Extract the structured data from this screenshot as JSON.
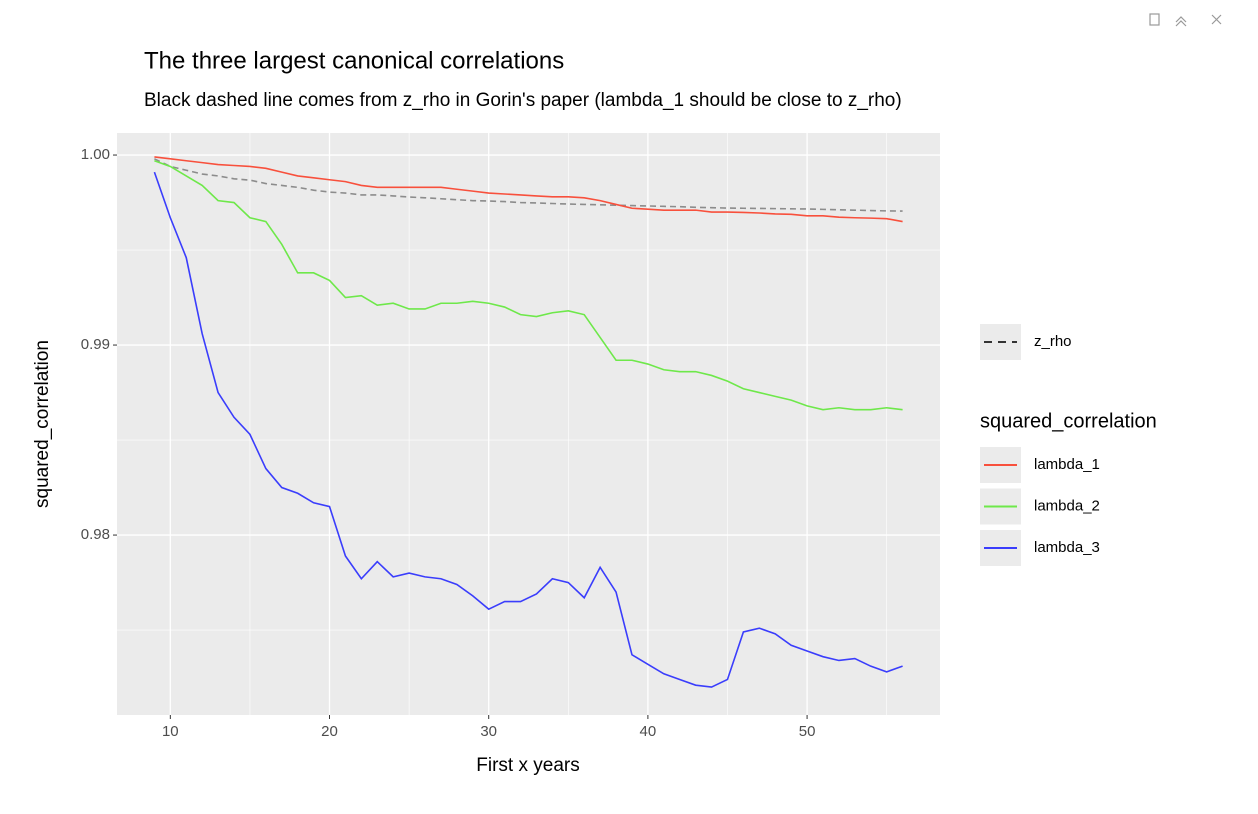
{
  "chart_data": {
    "type": "line",
    "title": "The three largest canonical correlations",
    "subtitle": "Black dashed line comes from z_rho in Gorin's paper (lambda_1 should be close to z_rho)",
    "x_label": "First x years",
    "y_label": "squared_correlation",
    "legend_title": "squared_correlation",
    "x": [
      9,
      10,
      11,
      12,
      13,
      14,
      15,
      16,
      17,
      18,
      19,
      20,
      21,
      22,
      23,
      24,
      25,
      26,
      27,
      28,
      29,
      30,
      31,
      32,
      33,
      34,
      35,
      36,
      37,
      38,
      39,
      40,
      41,
      42,
      43,
      44,
      45,
      46,
      47,
      48,
      49,
      50,
      51,
      52,
      53,
      54,
      55,
      56
    ],
    "series": [
      {
        "name": "z_rho",
        "color": "#8c8c8c",
        "dashed": true,
        "values": [
          0.9998,
          0.9994,
          0.9992,
          0.999,
          0.9989,
          0.99875,
          0.99868,
          0.9985,
          0.9984,
          0.9983,
          0.99815,
          0.99805,
          0.998,
          0.9979,
          0.9979,
          0.99785,
          0.99779,
          0.99775,
          0.9977,
          0.99765,
          0.9976,
          0.99758,
          0.99755,
          0.9975,
          0.99748,
          0.99745,
          0.99742,
          0.9974,
          0.99738,
          0.99736,
          0.99734,
          0.99732,
          0.9973,
          0.99728,
          0.99725,
          0.99723,
          0.99721,
          0.9972,
          0.99719,
          0.99718,
          0.99717,
          0.99716,
          0.99714,
          0.99712,
          0.9971,
          0.99708,
          0.99706,
          0.99705
        ]
      },
      {
        "name": "lambda_1",
        "color": "#f8503c",
        "values": [
          0.9999,
          0.9998,
          0.9997,
          0.9996,
          0.9995,
          0.99945,
          0.9994,
          0.9993,
          0.9991,
          0.9989,
          0.9988,
          0.9987,
          0.9986,
          0.9984,
          0.9983,
          0.9983,
          0.9983,
          0.9983,
          0.9983,
          0.9982,
          0.9981,
          0.998,
          0.99795,
          0.9979,
          0.99785,
          0.9978,
          0.9978,
          0.99775,
          0.9976,
          0.9974,
          0.9972,
          0.99715,
          0.9971,
          0.9971,
          0.9971,
          0.997,
          0.997,
          0.99698,
          0.99695,
          0.9969,
          0.99688,
          0.9968,
          0.9968,
          0.99673,
          0.9967,
          0.99668,
          0.99665,
          0.9965
        ]
      },
      {
        "name": "lambda_2",
        "color": "#6ee84a",
        "values": [
          0.9997,
          0.9994,
          0.9989,
          0.9984,
          0.9976,
          0.9975,
          0.9967,
          0.9965,
          0.9953,
          0.9938,
          0.9938,
          0.9934,
          0.9925,
          0.9926,
          0.9921,
          0.9922,
          0.9919,
          0.9919,
          0.9922,
          0.9922,
          0.9923,
          0.9922,
          0.992,
          0.9916,
          0.9915,
          0.9917,
          0.9918,
          0.9916,
          0.9904,
          0.9892,
          0.9892,
          0.989,
          0.9887,
          0.9886,
          0.9886,
          0.9884,
          0.9881,
          0.9877,
          0.9875,
          0.9873,
          0.9871,
          0.9868,
          0.9866,
          0.9867,
          0.9866,
          0.9866,
          0.9867,
          0.9866
        ]
      },
      {
        "name": "lambda_3",
        "color": "#3a3dfc",
        "values": [
          0.9991,
          0.9967,
          0.9946,
          0.9906,
          0.9875,
          0.9862,
          0.9853,
          0.9835,
          0.9825,
          0.9822,
          0.9817,
          0.9815,
          0.9789,
          0.9777,
          0.9786,
          0.9778,
          0.978,
          0.9778,
          0.9777,
          0.9774,
          0.9768,
          0.9761,
          0.9765,
          0.9765,
          0.9769,
          0.9777,
          0.9775,
          0.9767,
          0.9783,
          0.977,
          0.9737,
          0.9732,
          0.9727,
          0.9724,
          0.9721,
          0.972,
          0.9724,
          0.9749,
          0.9751,
          0.9748,
          0.9742,
          0.9739,
          0.9736,
          0.9734,
          0.9735,
          0.9731,
          0.9728,
          0.9731
        ]
      }
    ],
    "xlim": [
      6.65,
      58.35
    ],
    "ylim": [
      0.97053,
      1.00116
    ],
    "xticks": [
      10,
      20,
      30,
      40,
      50
    ],
    "yticks": [
      {
        "value": 1,
        "label": "1.00"
      },
      0.99,
      0.98
    ],
    "x_minor_ticks": [
      15,
      25,
      35,
      45,
      55
    ],
    "y_minor_ticks": [
      0.995,
      0.985,
      0.975
    ],
    "grid": true
  }
}
